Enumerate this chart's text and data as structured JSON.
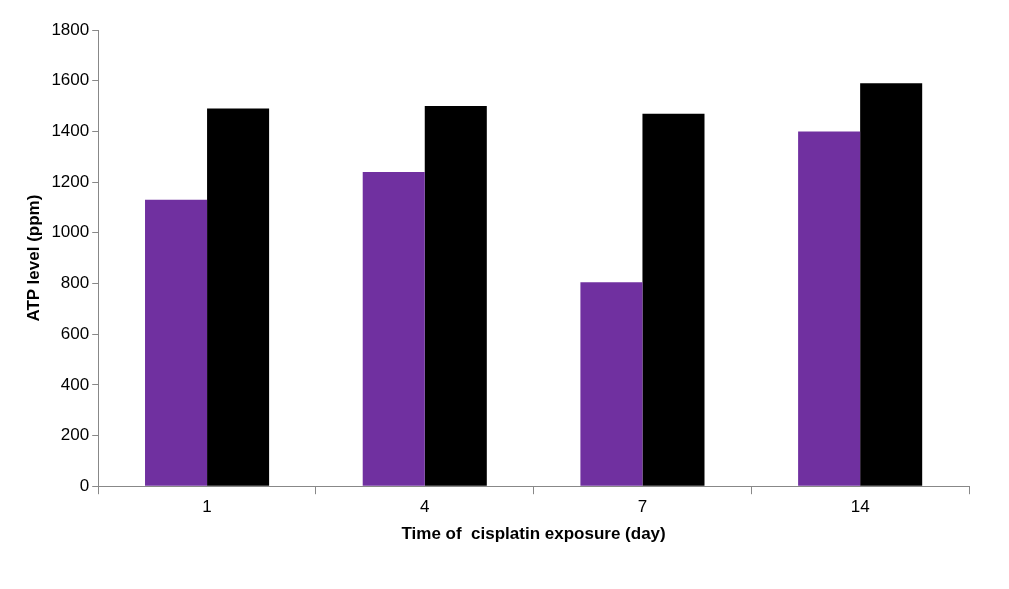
{
  "chart_data": {
    "type": "bar",
    "xlabel": "Time of  cisplatin exposure (day)",
    "ylabel": "ATP level (ppm)",
    "categories": [
      "1",
      "4",
      "7",
      "14"
    ],
    "series": [
      {
        "color": "#7030a0",
        "values": [
          1130,
          1240,
          805,
          1400
        ]
      },
      {
        "color": "#000000",
        "values": [
          1490,
          1500,
          1470,
          1590
        ]
      }
    ],
    "ylim": [
      0,
      1800
    ],
    "yticks": [
      0,
      200,
      400,
      600,
      800,
      1000,
      1200,
      1400,
      1600,
      1800
    ],
    "grid": false,
    "legend": false
  }
}
